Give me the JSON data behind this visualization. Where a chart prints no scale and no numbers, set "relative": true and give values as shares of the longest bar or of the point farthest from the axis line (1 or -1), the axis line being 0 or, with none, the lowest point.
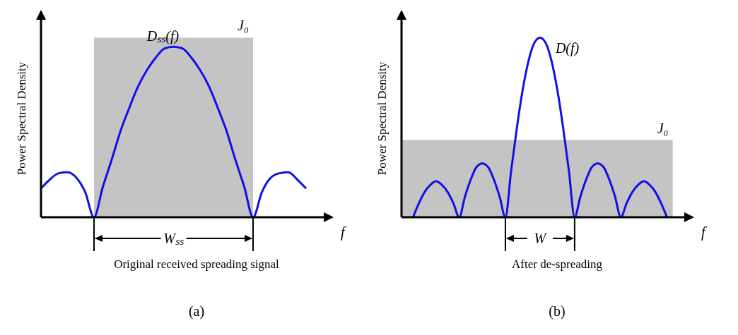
{
  "chart_data": [
    {
      "type": "line",
      "relative": true,
      "xlabel": "f",
      "ylabel": "Power Spectral Density",
      "tick_labels": false,
      "legend": false,
      "grid": false,
      "categories": [
        null,
        null,
        null,
        null,
        null,
        null,
        null,
        null,
        null,
        null,
        null,
        null,
        null,
        null,
        null,
        null,
        null,
        null,
        null,
        null,
        null,
        null,
        null,
        null,
        null,
        null,
        null,
        null,
        null,
        null,
        null,
        null,
        null
      ],
      "series": [
        {
          "name": "J₀",
          "type": "area",
          "color": "#c4c4c4",
          "values": [
            null,
            null,
            null,
            null,
            null,
            null,
            1,
            1,
            1,
            1,
            1,
            1,
            1,
            1,
            1,
            1,
            1,
            1,
            1,
            1,
            1,
            1,
            1,
            1,
            1,
            null,
            null,
            null,
            null,
            null,
            null,
            null,
            null
          ]
        },
        {
          "name": "Dₛₛ(f)",
          "type": "line",
          "color": "#1010e8",
          "values": [
            0.16,
            0.21,
            0.245,
            0.25,
            0.22,
            0.14,
            0,
            0.17,
            0.32,
            0.48,
            0.61,
            0.73,
            0.82,
            0.89,
            0.94,
            0.95,
            0.94,
            0.89,
            0.82,
            0.73,
            0.61,
            0.48,
            0.32,
            0.17,
            0,
            0.14,
            0.22,
            0.245,
            0.25,
            0.21,
            0.16,
            null,
            null
          ]
        }
      ],
      "annotations": [
        "Wₛₛ",
        "Original received spreading signal",
        "(a)"
      ]
    },
    {
      "type": "line",
      "relative": true,
      "xlabel": "f",
      "ylabel": "Power Spectral Density",
      "tick_labels": false,
      "legend": false,
      "grid": false,
      "categories": [
        null,
        null,
        null,
        null,
        null,
        null,
        null,
        null,
        null,
        null,
        null,
        null,
        null,
        null,
        null,
        null,
        null,
        null,
        null,
        null,
        null,
        null,
        null,
        null,
        null,
        null,
        null,
        null,
        null,
        null,
        null,
        null,
        null,
        null,
        null,
        null,
        null,
        null,
        null,
        null,
        null,
        null,
        null,
        null,
        null,
        null,
        null,
        null,
        null,
        null
      ],
      "series": [
        {
          "name": "J₀",
          "type": "area",
          "color": "#c4c4c4",
          "values": [
            0.43,
            0.43,
            0.43,
            0.43,
            0.43,
            0.43,
            0.43,
            0.43,
            0.43,
            0.43,
            0.43,
            0.43,
            0.43,
            0.43,
            0.43,
            0.43,
            0.43,
            0.43,
            0.43,
            0.43,
            0.43,
            0.43,
            0.43,
            0.43,
            0.43,
            0.43,
            0.43,
            0.43,
            0.43,
            0.43,
            0.43,
            0.43,
            0.43,
            0.43,
            0.43,
            0.43,
            0.43,
            0.43,
            0.43,
            0.43,
            0.43,
            0.43,
            0.43,
            0.43,
            0.43,
            0.43,
            0.43,
            0.43,
            null,
            null
          ]
        },
        {
          "name": "D(f)",
          "type": "line",
          "color": "#1010e8",
          "values": [
            null,
            null,
            0,
            0.077,
            0.14,
            0.18,
            0.2,
            0.18,
            0.14,
            0.077,
            0,
            0.115,
            0.21,
            0.28,
            0.3,
            0.28,
            0.21,
            0.115,
            0,
            0.26,
            0.5,
            0.71,
            0.87,
            0.97,
            1,
            0.97,
            0.87,
            0.71,
            0.5,
            0.26,
            0,
            0.115,
            0.21,
            0.28,
            0.3,
            0.28,
            0.21,
            0.115,
            0,
            0.077,
            0.14,
            0.18,
            0.2,
            0.18,
            0.14,
            0.077,
            0,
            null,
            null,
            null
          ]
        }
      ],
      "annotations": [
        "W",
        "After de-spreading",
        "(b)"
      ]
    }
  ]
}
